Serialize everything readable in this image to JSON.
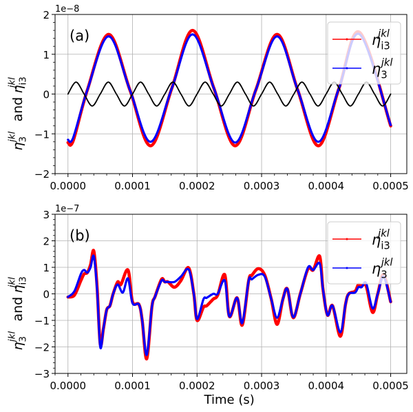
{
  "chart_data": [
    {
      "type": "line",
      "panel_label": "(a)",
      "offset_text": "1e−8",
      "xlabel": "",
      "ylabel": {
        "symbol": "η",
        "sub1": "3",
        "sup": "jkl",
        "conj": "and",
        "sub2": "i3"
      },
      "xlim": [
        -2e-05,
        0.000525
      ],
      "ylim": [
        -2,
        2
      ],
      "xticks": [
        "0.0000",
        "0.0001",
        "0.0002",
        "0.0003",
        "0.0004",
        "0.0005"
      ],
      "xtick_values": [
        0,
        0.0001,
        0.0002,
        0.0003,
        0.0004,
        0.0005
      ],
      "yticks": [
        "−2",
        "−1",
        "0",
        "1",
        "2"
      ],
      "ytick_values": [
        -2,
        -1,
        0,
        1,
        2
      ],
      "grid": true,
      "legend_position": "top-right",
      "series": [
        {
          "name": "eta_i3",
          "legend": {
            "symbol": "η",
            "sub": "i3",
            "sup": "jkl"
          },
          "color": "#ff0000",
          "x": [
            0,
            8e-06,
            3e-05,
            6.3e-05,
            9.6e-05,
            0.000128,
            0.000161,
            0.000193,
            0.000226,
            0.000259,
            0.000291,
            0.000324,
            0.000356,
            0.000388,
            0.00042,
            0.000452,
            0.0005
          ],
          "y": [
            -1.22,
            -1.18,
            0.1,
            1.5,
            0.1,
            -1.3,
            0.15,
            1.6,
            0.15,
            -1.3,
            0.1,
            1.5,
            0.1,
            -1.3,
            0.15,
            1.55,
            -0.8
          ]
        },
        {
          "name": "eta_3",
          "legend": {
            "symbol": "η",
            "sub": "3",
            "sup": "jkl"
          },
          "color": "#0000ff",
          "x": [
            0,
            8e-06,
            3e-05,
            6.3e-05,
            9.6e-05,
            0.000128,
            0.000161,
            0.000193,
            0.000226,
            0.000259,
            0.000291,
            0.000324,
            0.000356,
            0.000388,
            0.00042,
            0.000452,
            0.0005
          ],
          "y": [
            -1.15,
            -1.1,
            0.1,
            1.45,
            0.1,
            -1.2,
            0.15,
            1.5,
            0.15,
            -1.22,
            0.1,
            1.45,
            0.1,
            -1.2,
            0.15,
            1.5,
            -0.78
          ]
        },
        {
          "name": "reference",
          "color": "#000000",
          "x0": 0,
          "dx": 1.25e-05,
          "y": [
            0,
            0.3,
            0,
            -0.3,
            0,
            0.3,
            0,
            -0.3,
            0,
            0.3,
            0,
            -0.3,
            0,
            0.3,
            0,
            -0.3,
            0,
            0.3,
            0,
            -0.3,
            0,
            0.3,
            0,
            -0.3,
            0,
            0.3,
            0,
            -0.3,
            0,
            0.3,
            0,
            -0.3,
            0,
            0.3,
            0,
            -0.3,
            0,
            0.3,
            0,
            -0.3,
            0
          ]
        }
      ]
    },
    {
      "type": "line",
      "panel_label": "(b)",
      "offset_text": "1e−7",
      "xlabel": "Time (s)",
      "ylabel": {
        "symbol": "η",
        "sub1": "3",
        "sup": "jkl",
        "conj": "and",
        "sub2": "i3"
      },
      "xlim": [
        -2e-05,
        0.000525
      ],
      "ylim": [
        -3,
        3
      ],
      "xticks": [
        "0.0000",
        "0.0001",
        "0.0002",
        "0.0003",
        "0.0004",
        "0.0005"
      ],
      "xtick_values": [
        0,
        0.0001,
        0.0002,
        0.0003,
        0.0004,
        0.0005
      ],
      "yticks": [
        "−3",
        "−2",
        "−1",
        "0",
        "1",
        "2",
        "3"
      ],
      "ytick_values": [
        -3,
        -2,
        -1,
        0,
        1,
        2,
        3
      ],
      "grid": true,
      "legend_position": "top-right",
      "series": [
        {
          "name": "eta_i3",
          "legend": {
            "symbol": "η",
            "sub": "i3",
            "sup": "jkl"
          },
          "color": "#ff0000",
          "x": [
            0,
            1e-05,
            2e-05,
            2.5e-05,
            3e-05,
            3.5e-05,
            4e-05,
            4.5e-05,
            5e-05,
            5.5e-05,
            6e-05,
            6.5e-05,
            7e-05,
            7.7e-05,
            8.2e-05,
            9.3e-05,
            0.0001,
            0.00011,
            0.000115,
            0.000122,
            0.00013,
            0.000135,
            0.000145,
            0.00015,
            0.000155,
            0.000165,
            0.000175,
            0.000187,
            0.000195,
            0.0002,
            0.00021,
            0.000215,
            0.000225,
            0.000232,
            0.000243,
            0.00025,
            0.000262,
            0.00027,
            0.00028,
            0.000285,
            0.000295,
            0.000305,
            0.000315,
            0.000324,
            0.000333,
            0.00034,
            0.000349,
            0.00036,
            0.000372,
            0.00038,
            0.00039,
            0.000395,
            0.000402,
            0.00041,
            0.000422,
            0.00043,
            0.000435,
            0.000445,
            0.00045,
            0.000455,
            0.000462,
            0.000472,
            0.00048,
            0.000489,
            0.0005
          ],
          "y": [
            -0.12,
            -0.05,
            0.5,
            0.75,
            0.8,
            1.1,
            1.62,
            0.3,
            -1.9,
            -1.3,
            -0.6,
            -0.45,
            0.0,
            0.45,
            0.35,
            0.9,
            -0.3,
            -0.4,
            -1.0,
            -2.45,
            -0.5,
            -0.1,
            0.55,
            0.45,
            0.45,
            0.25,
            0.5,
            0.98,
            0.0,
            -1.0,
            -0.5,
            -0.45,
            -0.2,
            -0.05,
            0.72,
            -0.85,
            -0.15,
            -1.18,
            0.5,
            0.7,
            0.95,
            0.7,
            -0.2,
            -1.15,
            -0.2,
            0.18,
            -0.9,
            0.0,
            0.95,
            0.9,
            1.42,
            0.2,
            -0.8,
            -0.45,
            -1.6,
            -0.4,
            0.0,
            0.1,
            0.35,
            0.3,
            0.3,
            -0.7,
            0.0,
            0.72,
            -0.3
          ]
        },
        {
          "name": "eta_3",
          "legend": {
            "symbol": "η",
            "sub": "3",
            "sup": "jkl"
          },
          "color": "#0000ff",
          "x": [
            0,
            1e-05,
            2e-05,
            2.5e-05,
            3e-05,
            3.5e-05,
            4e-05,
            4.5e-05,
            5e-05,
            5.5e-05,
            6e-05,
            6.5e-05,
            7e-05,
            7.7e-05,
            8.5e-05,
            9.3e-05,
            0.0001,
            0.00011,
            0.000115,
            0.000122,
            0.00013,
            0.000135,
            0.000145,
            0.00015,
            0.000155,
            0.000165,
            0.000175,
            0.000187,
            0.000195,
            0.0002,
            0.00021,
            0.000215,
            0.000225,
            0.000232,
            0.000243,
            0.00025,
            0.000262,
            0.00027,
            0.00028,
            0.000285,
            0.000295,
            0.000305,
            0.000315,
            0.000324,
            0.000333,
            0.00034,
            0.000349,
            0.00036,
            0.000372,
            0.00038,
            0.00039,
            0.000395,
            0.000402,
            0.00041,
            0.000422,
            0.00043,
            0.000435,
            0.000445,
            0.00045,
            0.000455,
            0.000462,
            0.000472,
            0.00048,
            0.000489,
            0.0005
          ],
          "y": [
            -0.12,
            0.1,
            0.75,
            0.9,
            0.8,
            1.0,
            1.42,
            0.2,
            -2.0,
            -1.3,
            -0.6,
            -0.45,
            0.0,
            0.35,
            0.05,
            0.58,
            -0.35,
            -0.4,
            -1.0,
            -2.3,
            -0.5,
            -0.1,
            0.5,
            0.45,
            0.45,
            0.45,
            0.65,
            0.92,
            0.0,
            -0.95,
            -0.2,
            -0.15,
            0.0,
            0.0,
            0.5,
            -0.85,
            -0.15,
            -1.1,
            0.5,
            0.55,
            0.72,
            0.65,
            -0.2,
            -0.9,
            -0.2,
            0.18,
            -0.88,
            0.0,
            1.0,
            0.9,
            1.15,
            0.2,
            -0.8,
            -0.45,
            -1.45,
            -0.4,
            0.0,
            0.05,
            0.25,
            0.25,
            0.4,
            -0.55,
            0.0,
            0.65,
            -0.3
          ]
        }
      ]
    }
  ]
}
